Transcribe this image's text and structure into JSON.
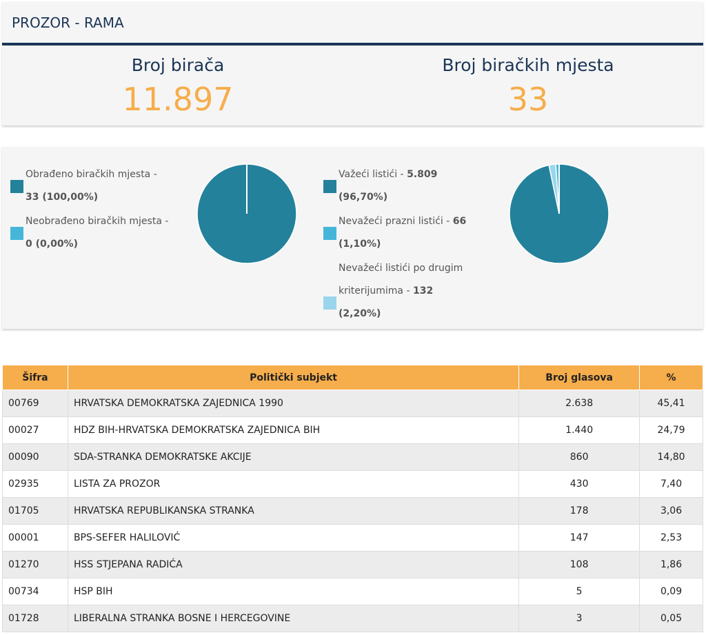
{
  "header": {
    "title": "PROZOR - RAMA"
  },
  "stats": {
    "voters_label": "Broj birača",
    "voters_value": "11.897",
    "stations_label": "Broj biračkih mjesta",
    "stations_value": "33"
  },
  "colors": {
    "dark_blue": "#1b3556",
    "orange": "#f6ad4b",
    "teal": "#24819b",
    "light_blue": "#45b6d9",
    "pale_blue": "#9ad6eb"
  },
  "chart_left": {
    "items": [
      {
        "text": "Obrađeno biračkih mjesta - ",
        "value": "33 (100,00%)"
      },
      {
        "text": "Neobrađeno biračkih mjesta - ",
        "value": "0 (0,00%)"
      }
    ]
  },
  "chart_right": {
    "items": [
      {
        "text": "Važeći listići - ",
        "value": "5.809",
        "pct": "(96,70%)"
      },
      {
        "text": "Nevažeći prazni listići - ",
        "value": "66",
        "pct": "(1,10%)"
      },
      {
        "text1": "Nevažeći listići po drugim",
        "text2": "kriterijumima - ",
        "value": "132",
        "pct": "(2,20%)"
      }
    ]
  },
  "chart_data": [
    {
      "type": "pie",
      "categories": [
        "Obrađeno biračkih mjesta",
        "Neobrađeno biračkih mjesta"
      ],
      "values": [
        100.0,
        0.0
      ],
      "colors": [
        "#24819b",
        "#45b6d9"
      ]
    },
    {
      "type": "pie",
      "categories": [
        "Važeći listići",
        "Nevažeći prazni listići",
        "Nevažeći listići po drugim kriterijumima"
      ],
      "values": [
        96.7,
        1.1,
        2.2
      ],
      "colors": [
        "#24819b",
        "#45b6d9",
        "#9ad6eb"
      ]
    }
  ],
  "table": {
    "headers": [
      "Šifra",
      "Politički subjekt",
      "Broj glasova",
      "%"
    ],
    "rows": [
      [
        "00769",
        "HRVATSKA DEMOKRATSKA ZAJEDNICA 1990",
        "2.638",
        "45,41"
      ],
      [
        "00027",
        "HDZ BIH-HRVATSKA DEMOKRATSKA ZAJEDNICA BIH",
        "1.440",
        "24,79"
      ],
      [
        "00090",
        "SDA-STRANKA DEMOKRATSKE AKCIJE",
        "860",
        "14,80"
      ],
      [
        "02935",
        "LISTA ZA PROZOR",
        "430",
        "7,40"
      ],
      [
        "01705",
        "HRVATSKA REPUBLIKANSKA STRANKA",
        "178",
        "3,06"
      ],
      [
        "00001",
        "BPS-SEFER HALILOVIĆ",
        "147",
        "2,53"
      ],
      [
        "01270",
        "HSS STJEPANA RADIĆA",
        "108",
        "1,86"
      ],
      [
        "00734",
        "HSP BIH",
        "5",
        "0,09"
      ],
      [
        "01728",
        "LIBERALNA STRANKA BOSNE I HERCEGOVINE",
        "3",
        "0,05"
      ]
    ]
  }
}
